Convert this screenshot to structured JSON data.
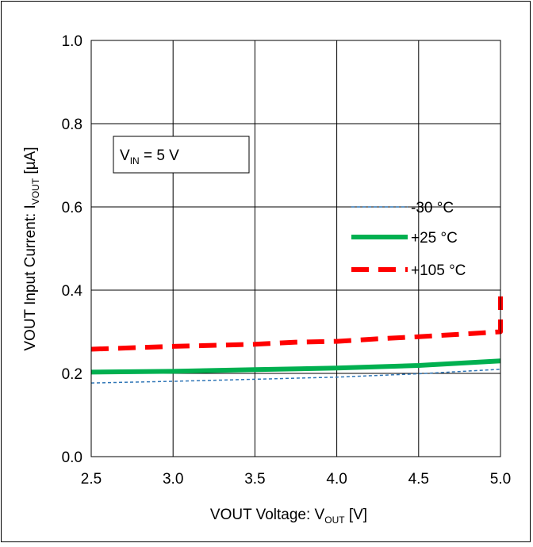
{
  "chart_data": {
    "type": "line",
    "xlabel": {
      "main": "VOUT Voltage: V",
      "sub": "OUT",
      "unit": " [V]"
    },
    "ylabel": {
      "main": "VOUT Input Current: I",
      "sub": "VOUT",
      "unit": " [µA]"
    },
    "xlim": [
      2.5,
      5.0
    ],
    "ylim": [
      0.0,
      1.0
    ],
    "xticks": [
      "2.5",
      "3.0",
      "3.5",
      "4.0",
      "4.5",
      "5.0"
    ],
    "yticks": [
      "0.0",
      "0.2",
      "0.4",
      "0.6",
      "0.8",
      "1.0"
    ],
    "grid": true,
    "legend_position": "right",
    "annotation": {
      "main": "V",
      "sub": "IN",
      "rest": " = 5 V"
    },
    "series": [
      {
        "name": "-30 °C",
        "color": "#2e75b6",
        "style": "thin-dashed",
        "x": [
          2.5,
          3.0,
          3.5,
          4.0,
          4.5,
          5.0
        ],
        "y": [
          0.177,
          0.181,
          0.186,
          0.191,
          0.199,
          0.21
        ]
      },
      {
        "name": "+25 °C",
        "color": "#00b050",
        "style": "thick-solid",
        "x": [
          2.5,
          3.0,
          3.5,
          4.0,
          4.5,
          5.0
        ],
        "y": [
          0.203,
          0.205,
          0.209,
          0.213,
          0.219,
          0.23
        ]
      },
      {
        "name": "+105 °C",
        "color": "#ff0000",
        "style": "thick-dashed",
        "x": [
          2.5,
          3.0,
          3.5,
          3.75,
          4.0,
          4.25,
          4.5,
          5.0,
          5.0
        ],
        "y": [
          0.258,
          0.265,
          0.27,
          0.275,
          0.277,
          0.283,
          0.288,
          0.3,
          0.385
        ]
      }
    ]
  }
}
